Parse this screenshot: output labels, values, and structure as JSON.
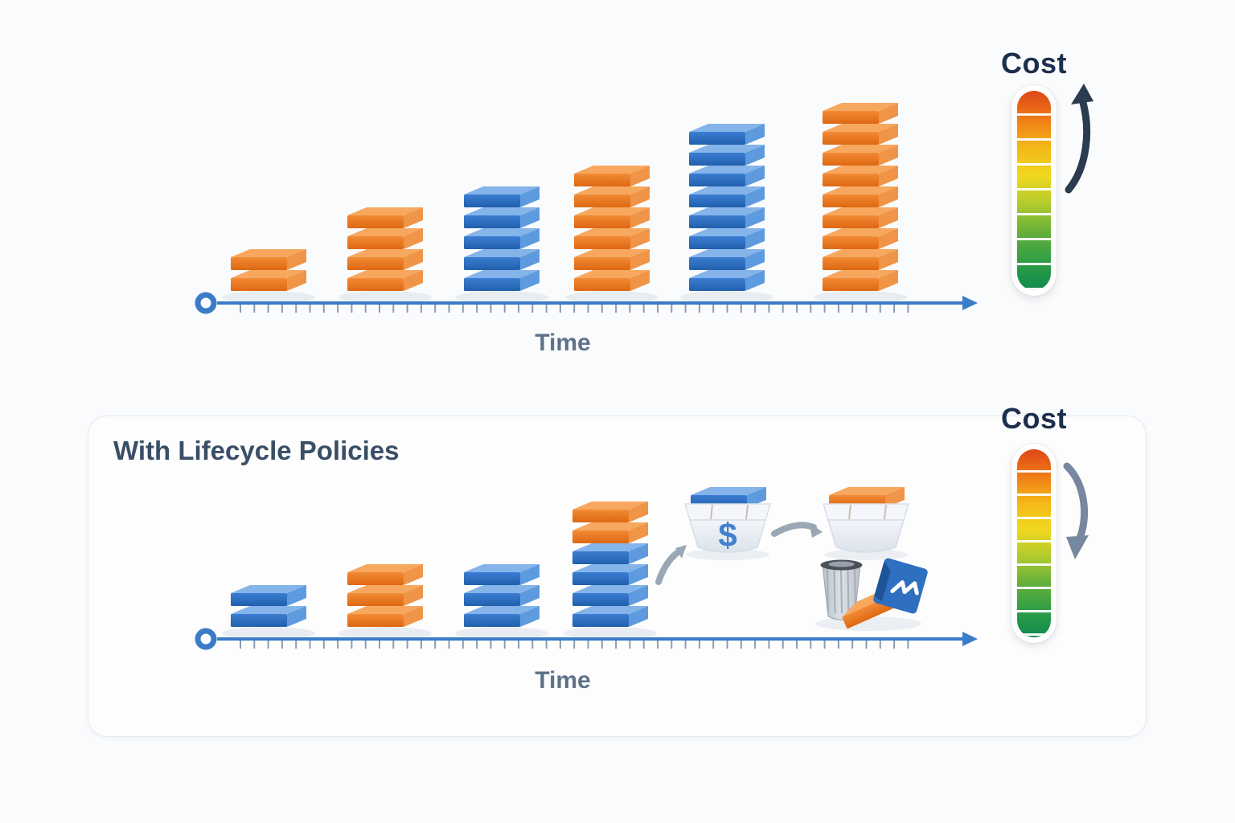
{
  "panels": {
    "top": {
      "name": "without-lifecycle-policies",
      "axis_label": "Time",
      "gauge_label": "Cost",
      "gauge_trend": "up",
      "stacks": [
        {
          "blocks": [
            "orange",
            "orange"
          ]
        },
        {
          "blocks": [
            "orange",
            "orange",
            "orange",
            "orange"
          ]
        },
        {
          "blocks": [
            "blue",
            "blue",
            "blue",
            "blue",
            "blue"
          ]
        },
        {
          "blocks": [
            "orange",
            "orange",
            "orange",
            "orange",
            "orange",
            "orange"
          ]
        },
        {
          "blocks": [
            "blue",
            "blue",
            "blue",
            "blue",
            "blue",
            "blue",
            "blue",
            "blue"
          ]
        },
        {
          "blocks": [
            "orange",
            "orange",
            "orange",
            "orange",
            "orange",
            "orange",
            "orange",
            "orange",
            "orange"
          ]
        }
      ]
    },
    "bottom": {
      "title": "With Lifecycle Policies",
      "axis_label": "Time",
      "gauge_label": "Cost",
      "gauge_trend": "down",
      "stacks": [
        {
          "blocks": [
            "blue",
            "blue"
          ]
        },
        {
          "blocks": [
            "orange",
            "orange",
            "orange"
          ]
        },
        {
          "blocks": [
            "blue",
            "blue",
            "blue"
          ]
        },
        {
          "blocks": [
            "blue",
            "blue",
            "blue",
            "blue",
            "orange",
            "orange"
          ]
        }
      ],
      "lifecycle_icons": {
        "dollar_bucket": {
          "symbol": "$",
          "slab_color": "blue",
          "icon": "dollar-bucket-icon"
        },
        "archive_bucket": {
          "slab_color": "orange",
          "icon": "archive-bucket-icon"
        },
        "deletion": {
          "icon": "trash-can-icon"
        },
        "transition_arrows": "gray-curved-arrow-icon"
      }
    }
  },
  "colors": {
    "background": "#fafbfc",
    "orange_front_hi": "#f28a36",
    "orange_front_lo": "#de6812",
    "orange_top": "#f7a85e",
    "orange_side": "#f09448",
    "blue_front_hi": "#3b7dd2",
    "blue_front_lo": "#2160ac",
    "blue_top": "#85b4ea",
    "blue_side": "#5e9bde",
    "axis": "#3b7cc9",
    "tick": "#8a9cb2",
    "time_label": "#5e7189",
    "cost_label": "#1c2f4d",
    "card_title": "#3a4f66",
    "arrow_up": "#2b3b50",
    "arrow_down": "#76889f",
    "gray_arrow": "#9aa7b5",
    "dollar_blue": "#4380cf",
    "gauge_gradient": [
      "#de4619",
      "#ef7c17",
      "#f4b818",
      "#f0d81f",
      "#afcb2d",
      "#63af3b",
      "#2f9e45",
      "#108b4f"
    ]
  }
}
